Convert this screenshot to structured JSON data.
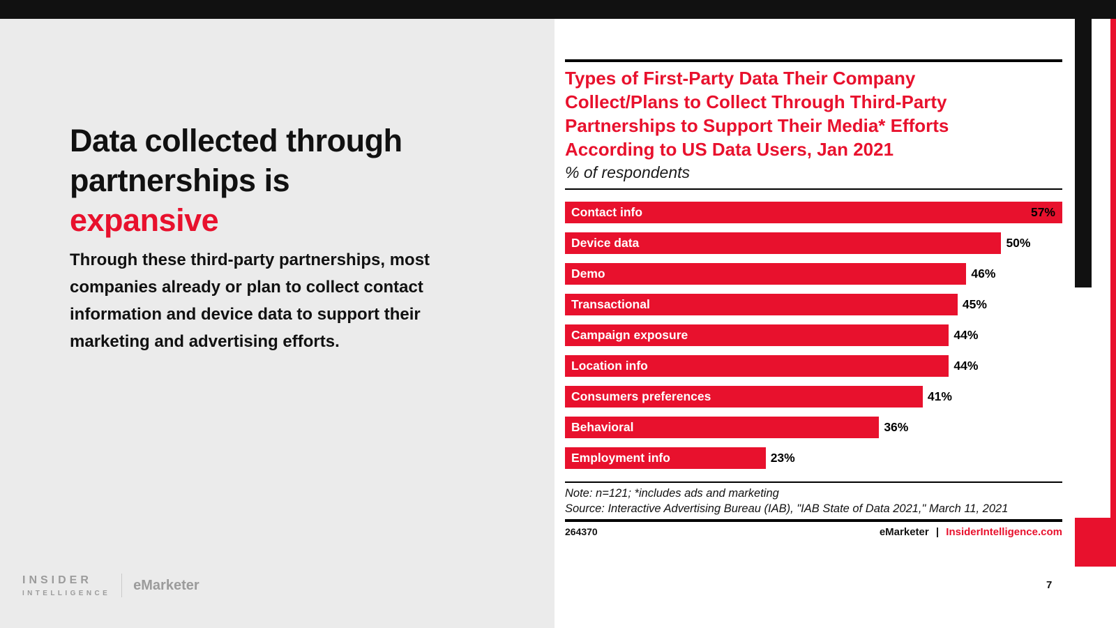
{
  "page": {
    "number": "7"
  },
  "left_panel": {
    "title_line1": "Data collected through",
    "title_line2": "partnerships is",
    "title_accent": "expansive",
    "body": "Through these third-party partnerships, most companies already or plan to collect contact information and device data to support their marketing and advertising efforts.",
    "brand": {
      "insider": "INSIDER",
      "intelligence": "INTELLIGENCE",
      "emarketer": "eMarketer"
    }
  },
  "chart": {
    "title_lines": [
      "Types of First-Party Data Their Company",
      "Collect/Plans to Collect Through Third-Party",
      "Partnerships to Support Their Media* Efforts",
      "According to US Data Users, Jan 2021"
    ],
    "subtitle": "% of respondents",
    "note": "Note: n=121; *includes ads and marketing",
    "source": "Source: Interactive Advertising Bureau (IAB), \"IAB State of Data 2021,\" March 11, 2021",
    "chart_id": "264370",
    "footer": {
      "brand": "eMarketer",
      "separator": "|",
      "site": "InsiderIntelligence.com"
    }
  },
  "chart_data": {
    "type": "bar",
    "orientation": "horizontal",
    "title": "Types of First-Party Data Their Company Collect/Plans to Collect Through Third-Party Partnerships to Support Their Media* Efforts According to US Data Users, Jan 2021",
    "subtitle": "% of respondents",
    "categories": [
      "Contact info",
      "Device data",
      "Demo",
      "Transactional",
      "Campaign exposure",
      "Location info",
      "Consumers preferences",
      "Behavioral",
      "Employment info"
    ],
    "values": [
      57,
      50,
      46,
      45,
      44,
      44,
      41,
      36,
      23
    ],
    "unit": "%",
    "xlim": [
      0,
      57
    ],
    "grid": false,
    "legend": false,
    "bar_color": "#e8112d",
    "category_label_color": "#ffffff",
    "value_label_color": "#000000"
  },
  "colors": {
    "accent_red": "#e8112d",
    "top_bar": "#111111",
    "left_bg": "#ebebeb"
  }
}
